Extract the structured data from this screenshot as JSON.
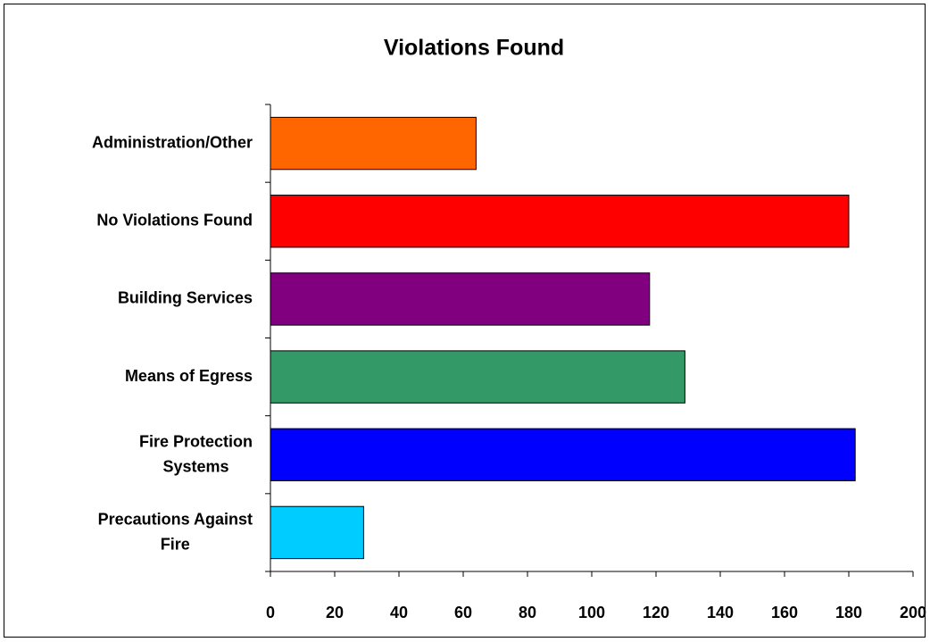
{
  "chart_data": {
    "type": "bar",
    "orientation": "horizontal",
    "title": "Violations Found",
    "categories": [
      "Administration/Other",
      "No Violations Found",
      "Building Services",
      "Means of Egress",
      "Fire Protection Systems",
      "Precautions Against Fire"
    ],
    "values": [
      64,
      180,
      118,
      129,
      182,
      29
    ],
    "colors": [
      "#ff6600",
      "#ff0000",
      "#800080",
      "#339966",
      "#0000ff",
      "#00ccff"
    ],
    "xlim": [
      0,
      200
    ],
    "xticks": [
      0,
      20,
      40,
      60,
      80,
      100,
      120,
      140,
      160,
      180,
      200
    ],
    "grid": false
  }
}
